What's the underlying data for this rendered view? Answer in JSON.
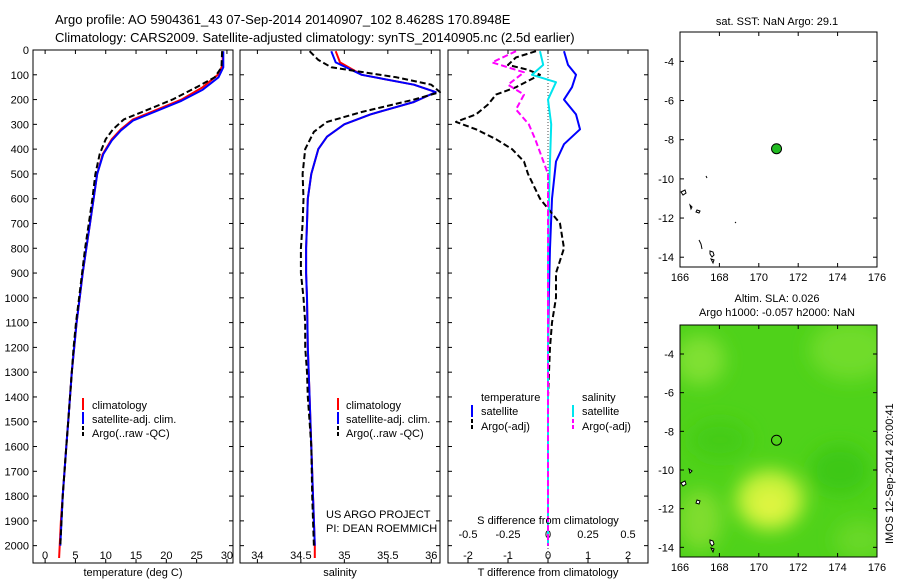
{
  "title_line1": "Argo profile: AO 5904361_43 07-Sep-2014 20140907_102 8.4628S 170.8948E",
  "title_line2": "Climatology: CARS2009. Satellite-adjusted climatology: synTS_20140905.nc (2.5d earlier)",
  "project_line1": "US ARGO PROJECT",
  "project_line2": "PI: DEAN ROEMMICH",
  "sst_title": "sat. SST: NaN Argo: 29.1",
  "sla_title_line1": "Altim. SLA: 0.026",
  "sla_title_line2": "Argo h1000: -0.057 h2000: NaN",
  "side_stamp": "IMOS 12-Sep-2014 20:00:41",
  "colors": {
    "climatology": "#ff0000",
    "satellite": "#0000ff",
    "argo": "#000000",
    "satellite_salinity": "#00e5ee",
    "argo_salinity": "#ff00ff",
    "float_marker": "#22bb22"
  },
  "chart_data": [
    {
      "type": "line",
      "panel": "temperature",
      "xlabel": "temperature (deg C)",
      "xlim": [
        -2,
        31
      ],
      "xticks": [
        0,
        5,
        10,
        15,
        20,
        25,
        30
      ],
      "ylim": [
        2070,
        0
      ],
      "yticks": [
        0,
        100,
        200,
        300,
        400,
        500,
        600,
        700,
        800,
        900,
        1000,
        1100,
        1200,
        1300,
        1400,
        1500,
        1600,
        1700,
        1800,
        1900,
        2000
      ],
      "legend": [
        "climatology",
        "satellite-adj. clim.",
        "Argo(..raw -QC)"
      ],
      "series": [
        {
          "name": "climatology",
          "style": "solid",
          "points": [
            [
              29.3,
              5
            ],
            [
              29.3,
              60
            ],
            [
              28.5,
              100
            ],
            [
              26,
              150
            ],
            [
              22.5,
              200
            ],
            [
              17.5,
              250
            ],
            [
              14.5,
              280
            ],
            [
              12.5,
              320
            ],
            [
              11,
              360
            ],
            [
              9.5,
              420
            ],
            [
              8.6,
              500
            ],
            [
              8,
              600
            ],
            [
              7.4,
              700
            ],
            [
              6.8,
              800
            ],
            [
              6.2,
              900
            ],
            [
              5.7,
              1000
            ],
            [
              5.2,
              1100
            ],
            [
              4.8,
              1200
            ],
            [
              4.4,
              1300
            ],
            [
              4.1,
              1400
            ],
            [
              3.8,
              1500
            ],
            [
              3.5,
              1600
            ],
            [
              3.2,
              1700
            ],
            [
              2.9,
              1800
            ],
            [
              2.6,
              1900
            ],
            [
              2.4,
              2000
            ],
            [
              2.3,
              2050
            ]
          ]
        },
        {
          "name": "satellite-adj. clim.",
          "style": "solid",
          "points": [
            [
              29.4,
              5
            ],
            [
              29.4,
              70
            ],
            [
              28.6,
              110
            ],
            [
              26,
              160
            ],
            [
              22.5,
              205
            ],
            [
              18,
              250
            ],
            [
              14.5,
              285
            ],
            [
              12.5,
              325
            ],
            [
              11,
              365
            ],
            [
              9.6,
              420
            ],
            [
              8.6,
              500
            ],
            [
              8,
              600
            ],
            [
              7.4,
              700
            ],
            [
              6.8,
              800
            ],
            [
              6.2,
              900
            ],
            [
              5.7,
              1000
            ],
            [
              5.2,
              1100
            ],
            [
              4.8,
              1200
            ],
            [
              4.4,
              1300
            ],
            [
              4.1,
              1400
            ],
            [
              3.8,
              1500
            ],
            [
              3.5,
              1600
            ],
            [
              3.2,
              1700
            ],
            [
              2.9,
              1800
            ],
            [
              2.7,
              1900
            ],
            [
              2.5,
              2000
            ]
          ]
        },
        {
          "name": "Argo(..raw -QC)",
          "style": "dashed",
          "points": [
            [
              29.2,
              5
            ],
            [
              29.1,
              70
            ],
            [
              28,
              110
            ],
            [
              25,
              150
            ],
            [
              21,
              200
            ],
            [
              16,
              250
            ],
            [
              13,
              280
            ],
            [
              11.2,
              320
            ],
            [
              10,
              360
            ],
            [
              9,
              420
            ],
            [
              8.3,
              500
            ],
            [
              7.8,
              600
            ],
            [
              7.2,
              700
            ],
            [
              6.6,
              800
            ],
            [
              6.1,
              900
            ],
            [
              5.6,
              1000
            ],
            [
              5.1,
              1100
            ],
            [
              4.7,
              1200
            ],
            [
              4.4,
              1300
            ],
            [
              4.1,
              1400
            ],
            [
              3.8,
              1500
            ],
            [
              3.5,
              1600
            ],
            [
              3.2,
              1700
            ],
            [
              2.9,
              1800
            ],
            [
              2.7,
              1900
            ],
            [
              2.5,
              2000
            ]
          ]
        }
      ]
    },
    {
      "type": "line",
      "panel": "salinity",
      "xlabel": "salinity",
      "xlim": [
        33.8,
        36.1
      ],
      "xticks": [
        34,
        34.5,
        35,
        35.5,
        36
      ],
      "ylim": [
        2070,
        0
      ],
      "legend": [
        "climatology",
        "satellite-adj. clim.",
        "Argo(..raw -QC)"
      ],
      "series": [
        {
          "name": "climatology",
          "style": "solid",
          "points": [
            [
              34.9,
              5
            ],
            [
              34.95,
              50
            ],
            [
              35.2,
              100
            ],
            [
              35.8,
              140
            ],
            [
              36.05,
              170
            ],
            [
              35.8,
              210
            ],
            [
              35.3,
              260
            ],
            [
              35,
              300
            ],
            [
              34.8,
              350
            ],
            [
              34.7,
              400
            ],
            [
              34.62,
              500
            ],
            [
              34.58,
              600
            ],
            [
              34.57,
              700
            ],
            [
              34.56,
              800
            ],
            [
              34.56,
              900
            ],
            [
              34.57,
              1000
            ],
            [
              34.58,
              1200
            ],
            [
              34.6,
              1400
            ],
            [
              34.62,
              1600
            ],
            [
              34.64,
              1800
            ],
            [
              34.66,
              2000
            ],
            [
              34.66,
              2050
            ]
          ]
        },
        {
          "name": "satellite-adj. clim.",
          "style": "solid",
          "points": [
            [
              34.85,
              5
            ],
            [
              34.9,
              50
            ],
            [
              35.2,
              100
            ],
            [
              35.8,
              140
            ],
            [
              36.05,
              170
            ],
            [
              35.8,
              210
            ],
            [
              35.3,
              260
            ],
            [
              35,
              300
            ],
            [
              34.8,
              350
            ],
            [
              34.7,
              400
            ],
            [
              34.62,
              500
            ],
            [
              34.58,
              600
            ],
            [
              34.57,
              700
            ],
            [
              34.56,
              800
            ],
            [
              34.56,
              900
            ],
            [
              34.57,
              1000
            ],
            [
              34.58,
              1200
            ],
            [
              34.6,
              1400
            ],
            [
              34.62,
              1600
            ],
            [
              34.64,
              1800
            ],
            [
              34.66,
              2000
            ]
          ]
        },
        {
          "name": "Argo(..raw -QC)",
          "style": "dashed",
          "points": [
            [
              34.6,
              5
            ],
            [
              34.7,
              40
            ],
            [
              34.85,
              70
            ],
            [
              35.6,
              110
            ],
            [
              36,
              140
            ],
            [
              36.1,
              170
            ],
            [
              35.8,
              200
            ],
            [
              35.2,
              250
            ],
            [
              34.8,
              290
            ],
            [
              34.65,
              330
            ],
            [
              34.55,
              400
            ],
            [
              34.52,
              500
            ],
            [
              34.53,
              600
            ],
            [
              34.52,
              700
            ],
            [
              34.5,
              800
            ],
            [
              34.5,
              900
            ],
            [
              34.53,
              1000
            ],
            [
              34.55,
              1100
            ],
            [
              34.55,
              1200
            ],
            [
              34.57,
              1300
            ],
            [
              34.58,
              1400
            ],
            [
              34.6,
              1500
            ],
            [
              34.62,
              1600
            ],
            [
              34.63,
              1800
            ],
            [
              34.65,
              2000
            ]
          ]
        }
      ]
    },
    {
      "type": "line",
      "panel": "difference",
      "xlabel_top": "S difference from climatology",
      "xlabel": "T difference from climatology",
      "xlim": [
        -2.5,
        2.5
      ],
      "xticks_T": [
        -2,
        -1,
        0,
        1,
        2
      ],
      "xticks_S": [
        -0.5,
        -0.25,
        0,
        0.25,
        0.5
      ],
      "xticklabels_S": [
        "-0.5",
        "-0.25",
        "0",
        "0.25",
        "0.5"
      ],
      "ylim": [
        2070,
        0
      ],
      "legend_temperature": [
        "temperature",
        "satellite",
        "Argo(-adj)"
      ],
      "legend_salinity": [
        "salinity",
        "satellite",
        "Argo(-adj)"
      ],
      "series": [
        {
          "name": "temperature satellite",
          "style": "solid",
          "points": [
            [
              0.4,
              5
            ],
            [
              0.5,
              60
            ],
            [
              0.7,
              100
            ],
            [
              0.6,
              150
            ],
            [
              0.4,
              200
            ],
            [
              0.7,
              260
            ],
            [
              0.8,
              320
            ],
            [
              0.4,
              380
            ],
            [
              0.2,
              450
            ],
            [
              0.1,
              600
            ],
            [
              0.05,
              800
            ],
            [
              0.02,
              1000
            ],
            [
              0,
              1200
            ],
            [
              0,
              1600
            ],
            [
              0,
              2000
            ]
          ]
        },
        {
          "name": "temperature Argo(-adj)",
          "style": "dashed",
          "points": [
            [
              -0.3,
              5
            ],
            [
              -0.8,
              30
            ],
            [
              -1,
              60
            ],
            [
              -0.5,
              80
            ],
            [
              -0.2,
              100
            ],
            [
              -0.8,
              150
            ],
            [
              -1.3,
              180
            ],
            [
              -1.5,
              220
            ],
            [
              -1.8,
              260
            ],
            [
              -2.3,
              290
            ],
            [
              -1.8,
              320
            ],
            [
              -1.3,
              360
            ],
            [
              -0.9,
              400
            ],
            [
              -0.6,
              450
            ],
            [
              -0.5,
              500
            ],
            [
              -0.2,
              600
            ],
            [
              0.3,
              700
            ],
            [
              0.4,
              800
            ],
            [
              0.2,
              900
            ],
            [
              0.2,
              1000
            ],
            [
              0.1,
              1100
            ],
            [
              0.05,
              1200
            ],
            [
              0,
              1400
            ],
            [
              0,
              1600
            ],
            [
              0,
              1800
            ],
            [
              0,
              2000
            ]
          ]
        },
        {
          "name": "salinity satellite",
          "style": "solid",
          "points": [
            [
              -0.05,
              5
            ],
            [
              -0.03,
              60
            ],
            [
              -0.1,
              100
            ],
            [
              0.05,
              130
            ],
            [
              0,
              200
            ],
            [
              0.02,
              300
            ],
            [
              0.01,
              500
            ],
            [
              0,
              800
            ],
            [
              0,
              1200
            ],
            [
              0,
              2000
            ]
          ]
        },
        {
          "name": "salinity Argo(-adj)",
          "style": "dashed",
          "points": [
            [
              -0.2,
              5
            ],
            [
              -0.35,
              50
            ],
            [
              -0.15,
              90
            ],
            [
              -0.25,
              140
            ],
            [
              -0.15,
              180
            ],
            [
              -0.2,
              240
            ],
            [
              -0.12,
              300
            ],
            [
              -0.08,
              360
            ],
            [
              -0.04,
              430
            ],
            [
              0,
              500
            ],
            [
              0,
              700
            ],
            [
              0,
              1000
            ],
            [
              0,
              1500
            ],
            [
              0,
              2000
            ]
          ]
        }
      ]
    },
    {
      "type": "scatter",
      "panel": "sst_map",
      "xlim": [
        166,
        176
      ],
      "ylim": [
        -14.5,
        -2.5
      ],
      "xticks": [
        166,
        168,
        170,
        172,
        174,
        176
      ],
      "yticks": [
        -4,
        -6,
        -8,
        -10,
        -12,
        -14
      ],
      "float_position": [
        170.9,
        -8.46
      ]
    },
    {
      "type": "heatmap",
      "panel": "sla_map",
      "xlim": [
        166,
        176
      ],
      "ylim": [
        -14.5,
        -2.5
      ],
      "xticks": [
        166,
        168,
        170,
        172,
        174,
        176
      ],
      "yticks": [
        -4,
        -6,
        -8,
        -10,
        -12,
        -14
      ],
      "float_position": [
        170.9,
        -8.46
      ]
    }
  ]
}
